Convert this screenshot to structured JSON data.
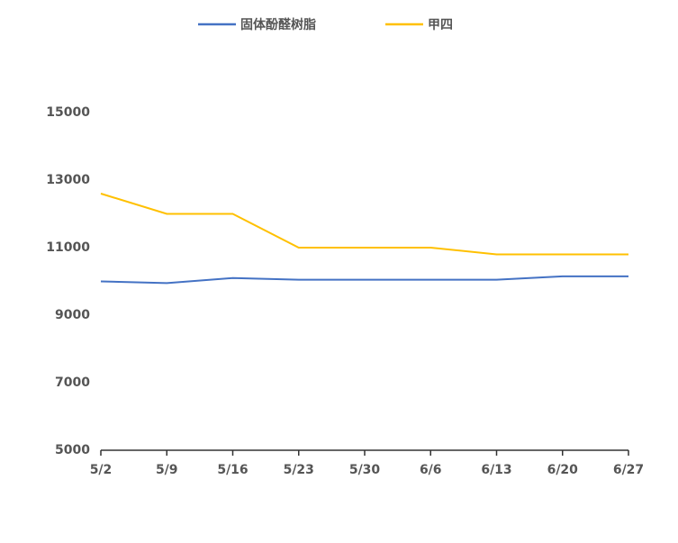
{
  "chart_data": {
    "type": "line",
    "categories": [
      "5/2",
      "5/9",
      "5/16",
      "5/23",
      "5/30",
      "6/6",
      "6/13",
      "6/20",
      "6/27"
    ],
    "series": [
      {
        "name": "固体酚醛树脂",
        "color": "#4472c4",
        "values": [
          10000,
          9950,
          10100,
          10050,
          10050,
          10050,
          10050,
          10150,
          10150
        ]
      },
      {
        "name": "甲四",
        "color": "#ffc000",
        "values": [
          12600,
          12000,
          12000,
          11000,
          11000,
          11000,
          10800,
          10800,
          10800
        ]
      }
    ],
    "ylim": [
      5000,
      15000
    ],
    "yticks": [
      5000,
      7000,
      9000,
      11000,
      13000,
      15000
    ],
    "grid": false
  }
}
